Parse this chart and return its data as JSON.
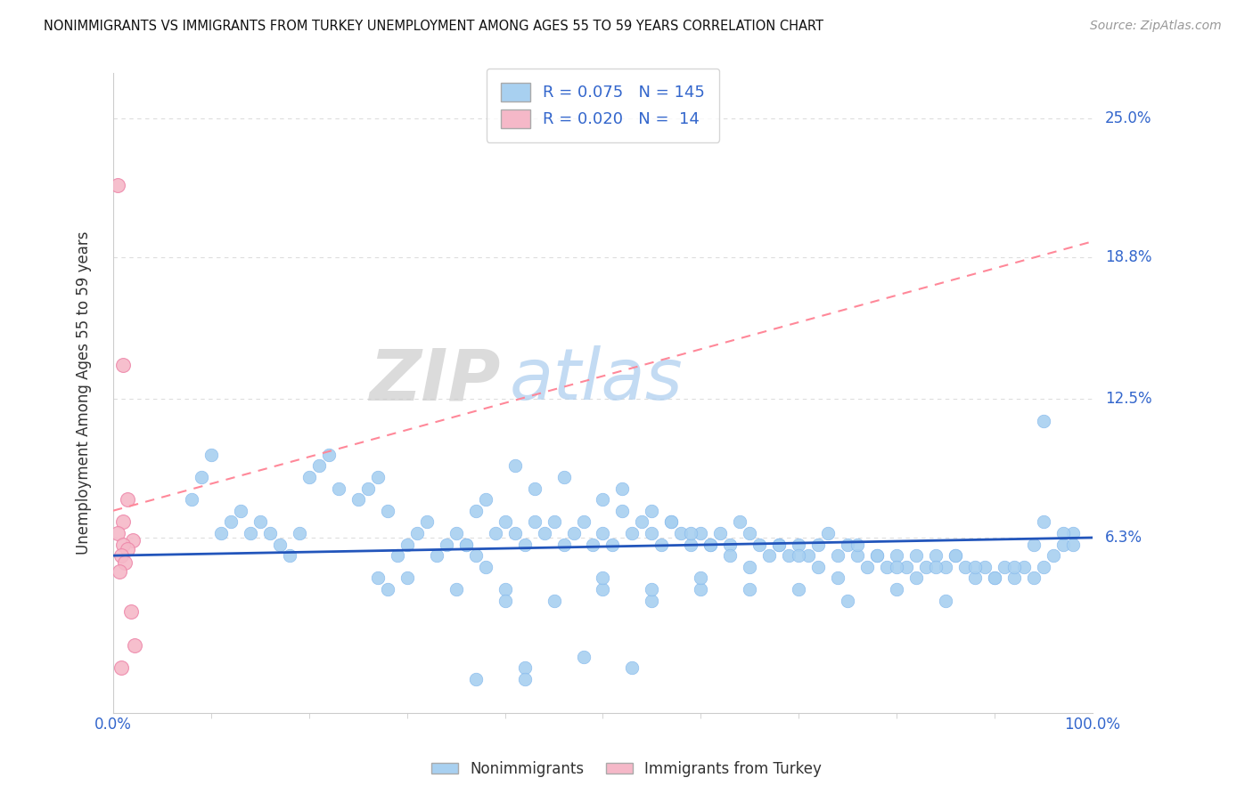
{
  "title": "NONIMMIGRANTS VS IMMIGRANTS FROM TURKEY UNEMPLOYMENT AMONG AGES 55 TO 59 YEARS CORRELATION CHART",
  "source": "Source: ZipAtlas.com",
  "ylabel": "Unemployment Among Ages 55 to 59 years",
  "ytick_labels": [
    "6.3%",
    "12.5%",
    "18.8%",
    "25.0%"
  ],
  "ytick_values": [
    0.063,
    0.125,
    0.188,
    0.25
  ],
  "xlim": [
    0.0,
    1.0
  ],
  "ylim": [
    -0.015,
    0.27
  ],
  "blue_color": "#A8D0F0",
  "pink_color": "#F5B8C8",
  "trend_blue": "#2255BB",
  "trend_pink": "#FF8899",
  "R_blue": 0.075,
  "N_blue": 145,
  "R_pink": 0.02,
  "N_pink": 14,
  "legend_label_blue": "Nonimmigrants",
  "legend_label_pink": "Immigrants from Turkey",
  "title_color": "#111111",
  "source_color": "#999999",
  "label_color": "#3366CC",
  "watermark_zip": "ZIP",
  "watermark_atlas": "atlas",
  "background_color": "#FFFFFF",
  "grid_color": "#DDDDDD",
  "blue_x": [
    0.08,
    0.09,
    0.1,
    0.11,
    0.12,
    0.13,
    0.14,
    0.15,
    0.16,
    0.17,
    0.18,
    0.19,
    0.2,
    0.21,
    0.22,
    0.23,
    0.25,
    0.26,
    0.27,
    0.28,
    0.29,
    0.3,
    0.31,
    0.32,
    0.33,
    0.34,
    0.35,
    0.36,
    0.37,
    0.38,
    0.27,
    0.28,
    0.36,
    0.37,
    0.38,
    0.39,
    0.4,
    0.41,
    0.42,
    0.43,
    0.44,
    0.45,
    0.46,
    0.47,
    0.48,
    0.49,
    0.5,
    0.51,
    0.52,
    0.53,
    0.54,
    0.55,
    0.56,
    0.57,
    0.58,
    0.59,
    0.6,
    0.61,
    0.62,
    0.63,
    0.64,
    0.65,
    0.66,
    0.67,
    0.68,
    0.69,
    0.7,
    0.71,
    0.72,
    0.73,
    0.74,
    0.75,
    0.76,
    0.77,
    0.78,
    0.79,
    0.8,
    0.81,
    0.82,
    0.83,
    0.84,
    0.85,
    0.86,
    0.87,
    0.88,
    0.89,
    0.9,
    0.91,
    0.92,
    0.93,
    0.94,
    0.95,
    0.96,
    0.97,
    0.98,
    0.41,
    0.43,
    0.46,
    0.5,
    0.52,
    0.55,
    0.57,
    0.59,
    0.61,
    0.63,
    0.65,
    0.68,
    0.7,
    0.72,
    0.74,
    0.76,
    0.78,
    0.8,
    0.82,
    0.84,
    0.86,
    0.88,
    0.9,
    0.92,
    0.94,
    0.4,
    0.45,
    0.5,
    0.55,
    0.6,
    0.7,
    0.75,
    0.8,
    0.85,
    0.95,
    0.3,
    0.35,
    0.4,
    0.5,
    0.55,
    0.6,
    0.65,
    0.95,
    0.97,
    0.98,
    0.37,
    0.42,
    0.48,
    0.53,
    0.42
  ],
  "blue_y": [
    0.08,
    0.09,
    0.1,
    0.065,
    0.07,
    0.075,
    0.065,
    0.07,
    0.065,
    0.06,
    0.055,
    0.065,
    0.09,
    0.095,
    0.1,
    0.085,
    0.08,
    0.085,
    0.09,
    0.075,
    0.055,
    0.06,
    0.065,
    0.07,
    0.055,
    0.06,
    0.065,
    0.06,
    0.055,
    0.05,
    0.045,
    0.04,
    0.06,
    0.075,
    0.08,
    0.065,
    0.07,
    0.065,
    0.06,
    0.07,
    0.065,
    0.07,
    0.06,
    0.065,
    0.07,
    0.06,
    0.065,
    0.06,
    0.075,
    0.065,
    0.07,
    0.065,
    0.06,
    0.07,
    0.065,
    0.06,
    0.065,
    0.06,
    0.065,
    0.06,
    0.07,
    0.065,
    0.06,
    0.055,
    0.06,
    0.055,
    0.06,
    0.055,
    0.06,
    0.065,
    0.055,
    0.06,
    0.055,
    0.05,
    0.055,
    0.05,
    0.055,
    0.05,
    0.055,
    0.05,
    0.055,
    0.05,
    0.055,
    0.05,
    0.045,
    0.05,
    0.045,
    0.05,
    0.045,
    0.05,
    0.045,
    0.05,
    0.055,
    0.06,
    0.065,
    0.095,
    0.085,
    0.09,
    0.08,
    0.085,
    0.075,
    0.07,
    0.065,
    0.06,
    0.055,
    0.05,
    0.06,
    0.055,
    0.05,
    0.045,
    0.06,
    0.055,
    0.05,
    0.045,
    0.05,
    0.055,
    0.05,
    0.045,
    0.05,
    0.06,
    0.04,
    0.035,
    0.04,
    0.035,
    0.04,
    0.04,
    0.035,
    0.04,
    0.035,
    0.115,
    0.045,
    0.04,
    0.035,
    0.045,
    0.04,
    0.045,
    0.04,
    0.07,
    0.065,
    0.06,
    0.0,
    0.005,
    0.01,
    0.005,
    0.0
  ],
  "pink_x": [
    0.005,
    0.01,
    0.015,
    0.01,
    0.005,
    0.02,
    0.01,
    0.015,
    0.008,
    0.012,
    0.006,
    0.018,
    0.022,
    0.008
  ],
  "pink_y": [
    0.22,
    0.14,
    0.08,
    0.07,
    0.065,
    0.062,
    0.06,
    0.058,
    0.055,
    0.052,
    0.048,
    0.03,
    0.015,
    0.005
  ]
}
